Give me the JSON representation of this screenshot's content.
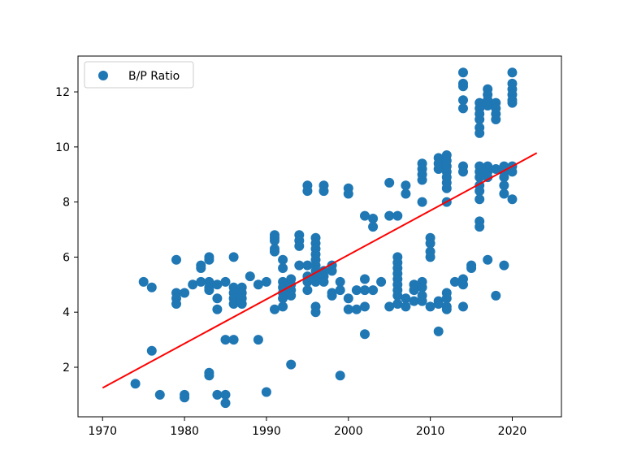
{
  "chart_data": {
    "type": "scatter",
    "title": "",
    "xlabel": "",
    "ylabel": "",
    "xlim": [
      1967,
      2026
    ],
    "ylim": [
      0.2,
      13.3
    ],
    "x_ticks": [
      1970,
      1980,
      1990,
      2000,
      2010,
      2020
    ],
    "y_ticks": [
      2,
      4,
      6,
      8,
      10,
      12
    ],
    "grid": false,
    "legend": {
      "position": "top-left",
      "entries": [
        "B/P Ratio"
      ]
    },
    "series": [
      {
        "name": "B/P Ratio",
        "kind": "scatter",
        "color": "#1f77b4",
        "points": [
          [
            1974,
            1.4
          ],
          [
            1975,
            5.1
          ],
          [
            1976,
            4.9
          ],
          [
            1976,
            2.6
          ],
          [
            1977,
            1.0
          ],
          [
            1979,
            5.9
          ],
          [
            1979,
            4.7
          ],
          [
            1979,
            4.5
          ],
          [
            1979,
            4.3
          ],
          [
            1980,
            4.7
          ],
          [
            1980,
            1.0
          ],
          [
            1980,
            0.9
          ],
          [
            1981,
            5.0
          ],
          [
            1982,
            5.7
          ],
          [
            1982,
            5.6
          ],
          [
            1982,
            5.1
          ],
          [
            1983,
            6.0
          ],
          [
            1983,
            5.9
          ],
          [
            1983,
            5.1
          ],
          [
            1983,
            4.9
          ],
          [
            1983,
            4.8
          ],
          [
            1983,
            1.8
          ],
          [
            1983,
            1.7
          ],
          [
            1984,
            5.0
          ],
          [
            1984,
            4.5
          ],
          [
            1984,
            4.1
          ],
          [
            1984,
            1.0
          ],
          [
            1985,
            5.1
          ],
          [
            1985,
            3.0
          ],
          [
            1985,
            1.0
          ],
          [
            1985,
            0.7
          ],
          [
            1986,
            6.0
          ],
          [
            1986,
            4.9
          ],
          [
            1986,
            4.7
          ],
          [
            1986,
            4.5
          ],
          [
            1986,
            4.3
          ],
          [
            1986,
            3.0
          ],
          [
            1987,
            4.9
          ],
          [
            1987,
            4.7
          ],
          [
            1987,
            4.5
          ],
          [
            1987,
            4.3
          ],
          [
            1988,
            5.3
          ],
          [
            1989,
            5.0
          ],
          [
            1989,
            3.0
          ],
          [
            1990,
            5.1
          ],
          [
            1990,
            1.1
          ],
          [
            1991,
            6.8
          ],
          [
            1991,
            6.7
          ],
          [
            1991,
            6.6
          ],
          [
            1991,
            6.3
          ],
          [
            1991,
            6.2
          ],
          [
            1991,
            4.1
          ],
          [
            1992,
            5.9
          ],
          [
            1992,
            5.6
          ],
          [
            1992,
            5.1
          ],
          [
            1992,
            4.9
          ],
          [
            1992,
            4.7
          ],
          [
            1992,
            4.5
          ],
          [
            1992,
            4.2
          ],
          [
            1993,
            5.2
          ],
          [
            1993,
            5.0
          ],
          [
            1993,
            4.8
          ],
          [
            1993,
            4.6
          ],
          [
            1993,
            2.1
          ],
          [
            1994,
            6.8
          ],
          [
            1994,
            6.6
          ],
          [
            1994,
            6.4
          ],
          [
            1994,
            5.7
          ],
          [
            1995,
            8.6
          ],
          [
            1995,
            8.4
          ],
          [
            1995,
            5.7
          ],
          [
            1995,
            5.3
          ],
          [
            1995,
            5.1
          ],
          [
            1995,
            4.8
          ],
          [
            1996,
            6.7
          ],
          [
            1996,
            6.5
          ],
          [
            1996,
            6.3
          ],
          [
            1996,
            6.1
          ],
          [
            1996,
            5.9
          ],
          [
            1996,
            5.7
          ],
          [
            1996,
            5.5
          ],
          [
            1996,
            5.3
          ],
          [
            1996,
            5.1
          ],
          [
            1996,
            4.2
          ],
          [
            1996,
            4.0
          ],
          [
            1997,
            8.6
          ],
          [
            1997,
            8.4
          ],
          [
            1997,
            5.5
          ],
          [
            1997,
            5.3
          ],
          [
            1997,
            5.1
          ],
          [
            1998,
            5.7
          ],
          [
            1998,
            5.5
          ],
          [
            1998,
            4.7
          ],
          [
            1998,
            4.6
          ],
          [
            1999,
            5.1
          ],
          [
            1999,
            4.8
          ],
          [
            1999,
            1.7
          ],
          [
            2000,
            8.5
          ],
          [
            2000,
            8.3
          ],
          [
            2000,
            4.5
          ],
          [
            2000,
            4.1
          ],
          [
            2001,
            4.8
          ],
          [
            2001,
            4.1
          ],
          [
            2002,
            7.5
          ],
          [
            2002,
            5.2
          ],
          [
            2002,
            4.8
          ],
          [
            2002,
            4.2
          ],
          [
            2002,
            3.2
          ],
          [
            2003,
            7.4
          ],
          [
            2003,
            7.1
          ],
          [
            2003,
            4.8
          ],
          [
            2004,
            5.1
          ],
          [
            2005,
            8.7
          ],
          [
            2005,
            7.5
          ],
          [
            2005,
            4.2
          ],
          [
            2006,
            7.5
          ],
          [
            2006,
            6.0
          ],
          [
            2006,
            5.8
          ],
          [
            2006,
            5.6
          ],
          [
            2006,
            5.4
          ],
          [
            2006,
            5.2
          ],
          [
            2006,
            5.0
          ],
          [
            2006,
            4.8
          ],
          [
            2006,
            4.6
          ],
          [
            2006,
            4.3
          ],
          [
            2007,
            8.6
          ],
          [
            2007,
            8.3
          ],
          [
            2007,
            4.5
          ],
          [
            2007,
            4.2
          ],
          [
            2008,
            5.0
          ],
          [
            2008,
            4.8
          ],
          [
            2008,
            4.4
          ],
          [
            2009,
            9.4
          ],
          [
            2009,
            9.2
          ],
          [
            2009,
            9.0
          ],
          [
            2009,
            8.8
          ],
          [
            2009,
            8.0
          ],
          [
            2009,
            5.1
          ],
          [
            2009,
            4.9
          ],
          [
            2009,
            4.6
          ],
          [
            2009,
            4.4
          ],
          [
            2010,
            6.7
          ],
          [
            2010,
            6.5
          ],
          [
            2010,
            6.2
          ],
          [
            2010,
            6.0
          ],
          [
            2010,
            4.2
          ],
          [
            2011,
            9.6
          ],
          [
            2011,
            9.4
          ],
          [
            2011,
            9.2
          ],
          [
            2011,
            4.4
          ],
          [
            2011,
            4.3
          ],
          [
            2011,
            3.3
          ],
          [
            2012,
            9.7
          ],
          [
            2012,
            9.5
          ],
          [
            2012,
            9.3
          ],
          [
            2012,
            9.1
          ],
          [
            2012,
            8.9
          ],
          [
            2012,
            8.7
          ],
          [
            2012,
            8.5
          ],
          [
            2012,
            8.0
          ],
          [
            2012,
            4.7
          ],
          [
            2012,
            4.5
          ],
          [
            2012,
            4.2
          ],
          [
            2012,
            4.1
          ],
          [
            2013,
            5.1
          ],
          [
            2014,
            12.7
          ],
          [
            2014,
            12.3
          ],
          [
            2014,
            12.2
          ],
          [
            2014,
            11.7
          ],
          [
            2014,
            11.4
          ],
          [
            2014,
            9.3
          ],
          [
            2014,
            9.1
          ],
          [
            2014,
            5.2
          ],
          [
            2014,
            5.0
          ],
          [
            2014,
            4.2
          ],
          [
            2015,
            5.7
          ],
          [
            2015,
            5.6
          ],
          [
            2016,
            11.6
          ],
          [
            2016,
            11.4
          ],
          [
            2016,
            11.2
          ],
          [
            2016,
            11.0
          ],
          [
            2016,
            10.7
          ],
          [
            2016,
            10.5
          ],
          [
            2016,
            9.3
          ],
          [
            2016,
            9.1
          ],
          [
            2016,
            8.9
          ],
          [
            2016,
            8.6
          ],
          [
            2016,
            8.4
          ],
          [
            2016,
            8.1
          ],
          [
            2016,
            7.3
          ],
          [
            2016,
            7.1
          ],
          [
            2017,
            12.1
          ],
          [
            2017,
            11.9
          ],
          [
            2017,
            11.7
          ],
          [
            2017,
            11.5
          ],
          [
            2017,
            9.3
          ],
          [
            2017,
            9.1
          ],
          [
            2017,
            8.9
          ],
          [
            2017,
            5.9
          ],
          [
            2018,
            11.6
          ],
          [
            2018,
            11.4
          ],
          [
            2018,
            11.2
          ],
          [
            2018,
            11.0
          ],
          [
            2018,
            9.2
          ],
          [
            2018,
            4.6
          ],
          [
            2019,
            9.3
          ],
          [
            2019,
            9.1
          ],
          [
            2019,
            8.9
          ],
          [
            2019,
            8.6
          ],
          [
            2019,
            8.3
          ],
          [
            2019,
            5.7
          ],
          [
            2020,
            12.7
          ],
          [
            2020,
            12.3
          ],
          [
            2020,
            12.1
          ],
          [
            2020,
            11.9
          ],
          [
            2020,
            11.7
          ],
          [
            2020,
            11.6
          ],
          [
            2020,
            9.3
          ],
          [
            2020,
            9.1
          ],
          [
            2020,
            8.1
          ]
        ]
      },
      {
        "kind": "line",
        "color": "#ff0000",
        "points": [
          [
            1970,
            1.25
          ],
          [
            2023,
            9.78
          ]
        ]
      }
    ]
  }
}
